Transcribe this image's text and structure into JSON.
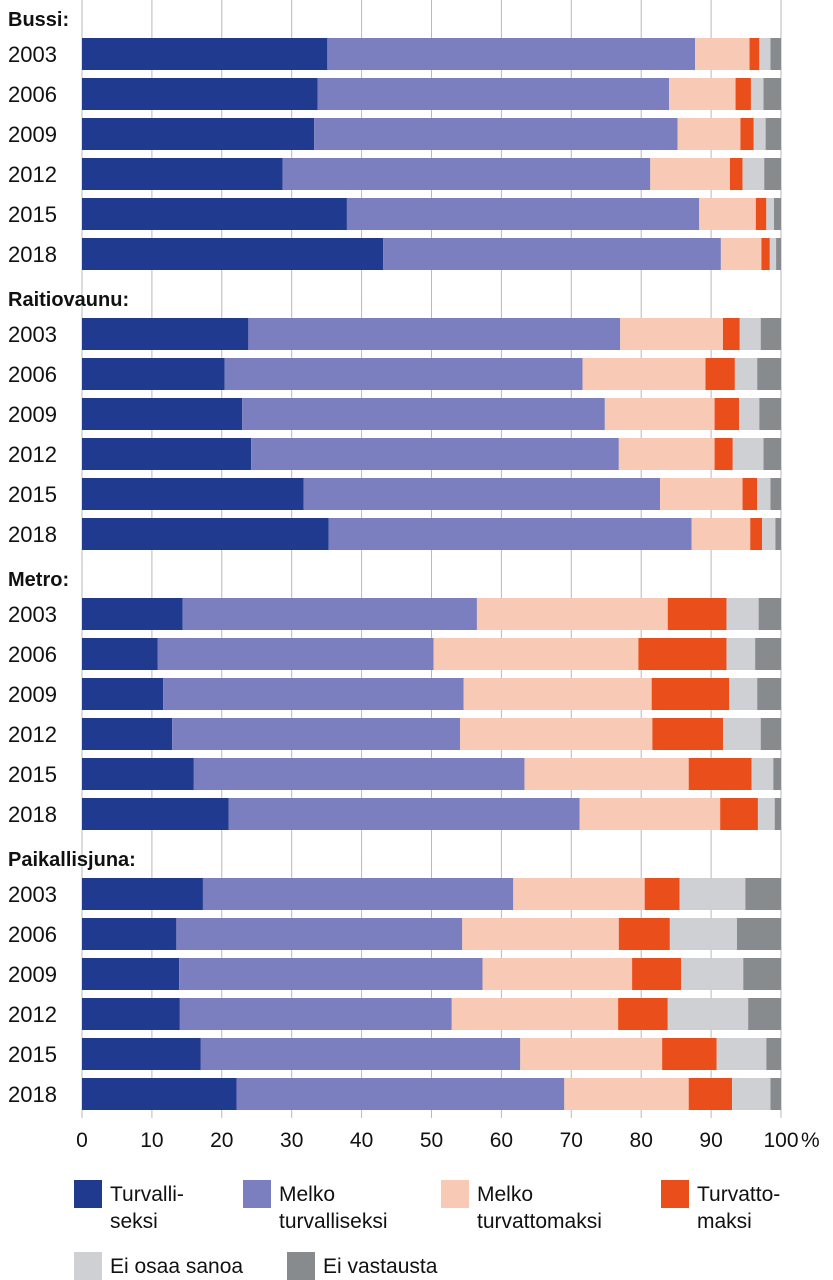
{
  "chart_data": {
    "type": "bar",
    "orientation": "horizontal",
    "stacked": true,
    "xlim": [
      0,
      100
    ],
    "xticks": [
      0,
      10,
      20,
      30,
      40,
      50,
      60,
      70,
      80,
      90,
      100
    ],
    "unit_label": "%",
    "grid": "vertical",
    "legend_position": "bottom",
    "categories_order": [
      "Turvalliseksi",
      "Melko turvalliseksi",
      "Melko turvattomaksi",
      "Turvattomaksi",
      "Ei osaa sanoa",
      "Ei vastausta"
    ],
    "legend": [
      {
        "lines": [
          "Turvalli-",
          "seksi"
        ],
        "color": "#1f3a8f"
      },
      {
        "lines": [
          "Melko",
          "turvalliseksi"
        ],
        "color": "#7b7fbf"
      },
      {
        "lines": [
          "Melko",
          "turvattomaksi"
        ],
        "color": "#f8c9b4"
      },
      {
        "lines": [
          "Turvatto-",
          "maksi"
        ],
        "color": "#e94e1b"
      },
      {
        "lines": [
          "Ei osaa sanoa"
        ],
        "color": "#cfd0d4"
      },
      {
        "lines": [
          "Ei vastausta"
        ],
        "color": "#878b8d"
      }
    ],
    "groups": [
      {
        "title": "Bussi:",
        "rows": [
          {
            "year": "2003",
            "values": [
              35.1,
              52.6,
              7.8,
              1.4,
              1.6,
              1.5
            ]
          },
          {
            "year": "2006",
            "values": [
              33.7,
              50.3,
              9.5,
              2.2,
              1.8,
              2.5
            ]
          },
          {
            "year": "2009",
            "values": [
              33.2,
              52.0,
              9.0,
              1.9,
              1.7,
              2.2
            ]
          },
          {
            "year": "2012",
            "values": [
              28.7,
              52.6,
              11.4,
              1.8,
              3.1,
              2.4
            ]
          },
          {
            "year": "2015",
            "values": [
              37.9,
              50.4,
              8.1,
              1.5,
              1.1,
              1.0
            ]
          },
          {
            "year": "2018",
            "values": [
              43.1,
              48.3,
              5.8,
              1.2,
              0.9,
              0.7
            ]
          }
        ]
      },
      {
        "title": "Raitiovaunu:",
        "rows": [
          {
            "year": "2003",
            "values": [
              23.8,
              53.2,
              14.7,
              2.4,
              3.0,
              2.9
            ]
          },
          {
            "year": "2006",
            "values": [
              20.4,
              51.2,
              17.6,
              4.2,
              3.2,
              3.4
            ]
          },
          {
            "year": "2009",
            "values": [
              22.9,
              51.9,
              15.7,
              3.5,
              2.9,
              3.1
            ]
          },
          {
            "year": "2012",
            "values": [
              24.2,
              52.6,
              13.7,
              2.6,
              4.4,
              2.5
            ]
          },
          {
            "year": "2015",
            "values": [
              31.7,
              51.0,
              11.8,
              2.1,
              1.9,
              1.5
            ]
          },
          {
            "year": "2018",
            "values": [
              35.3,
              51.9,
              8.4,
              1.7,
              1.9,
              0.8
            ]
          }
        ]
      },
      {
        "title": "Metro:",
        "rows": [
          {
            "year": "2003",
            "values": [
              14.4,
              42.1,
              27.3,
              8.4,
              4.6,
              3.2
            ]
          },
          {
            "year": "2006",
            "values": [
              10.8,
              39.5,
              29.3,
              12.6,
              4.1,
              3.7
            ]
          },
          {
            "year": "2009",
            "values": [
              11.6,
              43.0,
              26.9,
              11.1,
              4.0,
              3.4
            ]
          },
          {
            "year": "2012",
            "values": [
              12.9,
              41.2,
              27.5,
              10.1,
              5.4,
              2.9
            ]
          },
          {
            "year": "2015",
            "values": [
              16.0,
              47.3,
              23.5,
              9.0,
              3.1,
              1.1
            ]
          },
          {
            "year": "2018",
            "values": [
              21.0,
              50.2,
              20.1,
              5.4,
              2.4,
              0.9
            ]
          }
        ]
      },
      {
        "title": "Paikallisjuna:",
        "rows": [
          {
            "year": "2003",
            "values": [
              17.3,
              44.4,
              18.8,
              5.0,
              9.4,
              5.1
            ]
          },
          {
            "year": "2006",
            "values": [
              13.5,
              40.9,
              22.4,
              7.3,
              9.6,
              6.3
            ]
          },
          {
            "year": "2009",
            "values": [
              13.9,
              43.4,
              21.4,
              7.0,
              8.9,
              5.4
            ]
          },
          {
            "year": "2012",
            "values": [
              14.0,
              38.9,
              23.8,
              7.1,
              11.5,
              4.7
            ]
          },
          {
            "year": "2015",
            "values": [
              17.0,
              45.7,
              20.3,
              7.8,
              7.1,
              2.1
            ]
          },
          {
            "year": "2018",
            "values": [
              22.1,
              46.9,
              17.8,
              6.2,
              5.5,
              1.5
            ]
          }
        ]
      }
    ]
  }
}
